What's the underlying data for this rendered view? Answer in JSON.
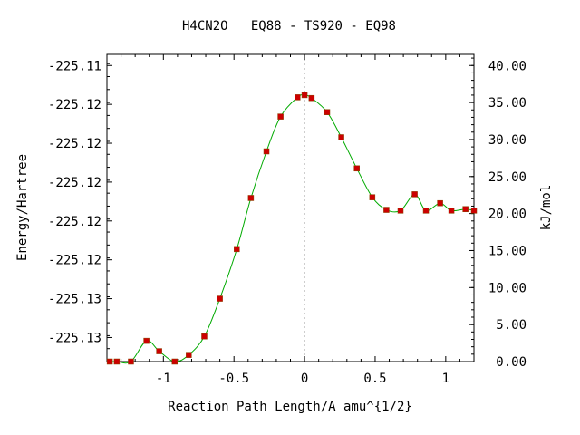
{
  "chart_data": {
    "type": "line",
    "title": "H4CN2O   EQ88 - TS920 - EQ98",
    "xlabel": "Reaction Path Length/A amu^{1/2}",
    "ylabel_left": "Energy/Hartree",
    "ylabel_right": "kJ/mol",
    "xlim": [
      -1.4,
      1.2
    ],
    "ylim_kj": [
      0,
      41.5
    ],
    "x_ticks": [
      {
        "value": -1,
        "label": "-1"
      },
      {
        "value": -0.5,
        "label": "-0.5"
      },
      {
        "value": 0,
        "label": "0"
      },
      {
        "value": 0.5,
        "label": "0.5"
      },
      {
        "value": 1,
        "label": "1"
      }
    ],
    "left_ticks": [
      {
        "kj": 40.0,
        "label": "-225.11"
      },
      {
        "kj": 34.75,
        "label": "-225.12"
      },
      {
        "kj": 29.5,
        "label": "-225.12"
      },
      {
        "kj": 24.25,
        "label": "-225.12"
      },
      {
        "kj": 19.0,
        "label": "-225.12"
      },
      {
        "kj": 13.75,
        "label": "-225.12"
      },
      {
        "kj": 8.5,
        "label": "-225.13"
      },
      {
        "kj": 3.25,
        "label": "-225.13"
      }
    ],
    "right_ticks": [
      {
        "kj": 0,
        "label": "0.00"
      },
      {
        "kj": 5,
        "label": "5.00"
      },
      {
        "kj": 10,
        "label": "10.00"
      },
      {
        "kj": 15,
        "label": "15.00"
      },
      {
        "kj": 20,
        "label": "20.00"
      },
      {
        "kj": 25,
        "label": "25.00"
      },
      {
        "kj": 30,
        "label": "30.00"
      },
      {
        "kj": 35,
        "label": "35.00"
      },
      {
        "kj": 40,
        "label": "40.00"
      }
    ],
    "ts_marker_x": 0,
    "series": [
      {
        "x": [
          -1.38,
          -1.33,
          -1.23,
          -1.12,
          -1.03,
          -0.92,
          -0.82,
          -0.71,
          -0.6,
          -0.48,
          -0.38,
          -0.27,
          -0.17,
          -0.05,
          0.0,
          0.05,
          0.16,
          0.26,
          0.37,
          0.48,
          0.58,
          0.68,
          0.78,
          0.86,
          0.96,
          1.04,
          1.14,
          1.2
        ],
        "y": [
          0.0,
          0.0,
          0.0,
          2.8,
          1.4,
          0.0,
          0.9,
          3.4,
          8.5,
          15.2,
          22.1,
          28.4,
          33.1,
          35.7,
          36.0,
          35.6,
          33.7,
          30.3,
          26.1,
          22.2,
          20.5,
          20.4,
          22.6,
          20.4,
          21.4,
          20.4,
          20.6,
          20.4
        ],
        "line_color": "#00aa00",
        "point_color": "#cc0000"
      }
    ]
  },
  "colors": {
    "axis": "#000000",
    "dotted_marker": "#aaaaaa"
  }
}
